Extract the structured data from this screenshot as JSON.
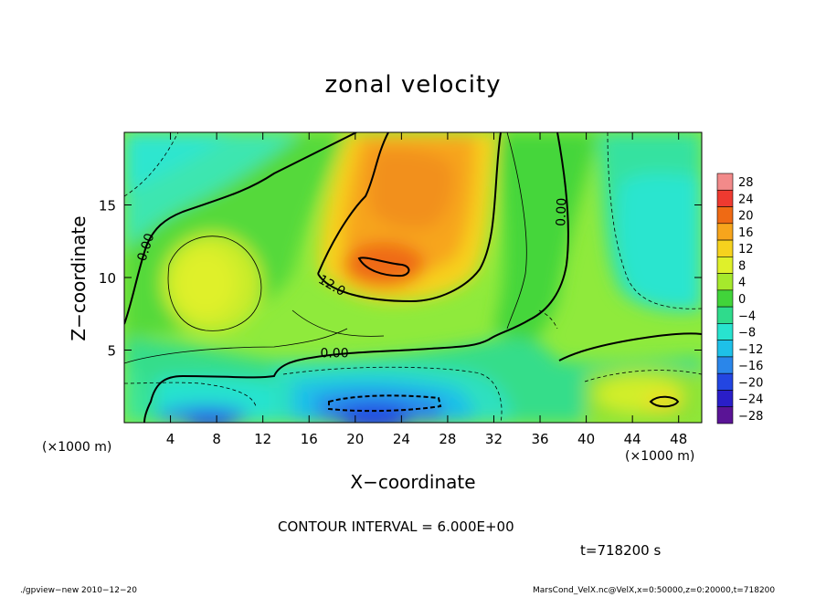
{
  "chart_data": {
    "type": "heatmap",
    "title": "zonal velocity",
    "xlabel": "X−coordinate",
    "ylabel": "Z−coordinate",
    "x_unit_left": "(×1000 m)",
    "x_unit_right": "(×1000 m)",
    "xlim": [
      0,
      50
    ],
    "ylim": [
      0,
      20
    ],
    "x_ticks": [
      4,
      8,
      12,
      16,
      20,
      24,
      28,
      32,
      36,
      40,
      44,
      48
    ],
    "x_tick_labels": [
      "4",
      "8",
      "12",
      "16",
      "20",
      "24",
      "28",
      "32",
      "36",
      "40",
      "44",
      "48"
    ],
    "y_ticks": [
      5,
      10,
      15
    ],
    "y_tick_labels": [
      "5",
      "10",
      "15"
    ],
    "colorbar": {
      "levels": [
        28,
        24,
        20,
        16,
        12,
        8,
        4,
        0,
        -4,
        -8,
        -12,
        -16,
        -20,
        -24,
        -28
      ],
      "labels": [
        "28",
        "24",
        "20",
        "16",
        "12",
        "8",
        "4",
        "0",
        "−4",
        "−8",
        "−12",
        "−16",
        "−20",
        "−24",
        "−28"
      ],
      "colors": [
        "#f28a8a",
        "#ee3a30",
        "#ef6a14",
        "#f7a51c",
        "#f6d21e",
        "#dff02a",
        "#a6e92c",
        "#41d43a",
        "#2fdb8c",
        "#28e3cf",
        "#1ec0e8",
        "#2a86ea",
        "#2346e2",
        "#2a1ec8",
        "#5a1496"
      ]
    },
    "contour_labels": [
      {
        "text": "0.00",
        "x": 2.2,
        "y": 12.0,
        "angle": -72
      },
      {
        "text": "12.0",
        "x": 17.8,
        "y": 9.2,
        "angle": 30
      },
      {
        "text": "0.00",
        "x": 18.2,
        "y": 4.5,
        "angle": 0
      },
      {
        "text": "0.00",
        "x": 38.2,
        "y": 14.5,
        "angle": -88
      }
    ],
    "contour_interval_text": "CONTOUR INTERVAL = 6.000E+00",
    "time_text": "t=718200 s"
  },
  "footer": {
    "left": "./gpview−new  2010−12−20",
    "right": "MarsCond_VelX.nc@VelX,x=0:50000,z=0:20000,t=718200"
  }
}
